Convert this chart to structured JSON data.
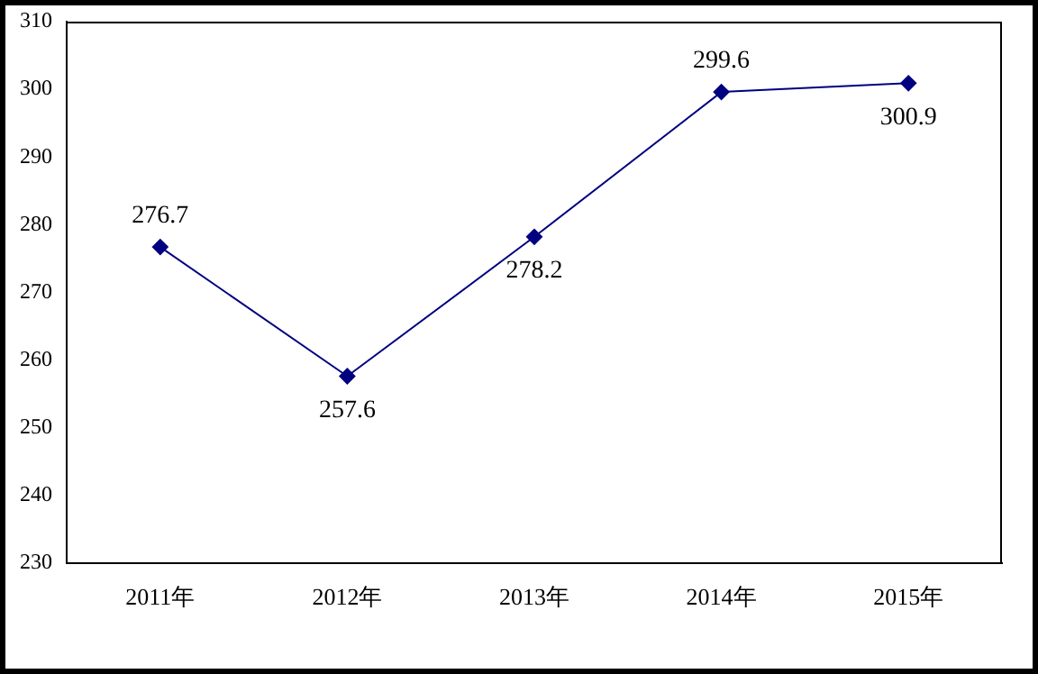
{
  "chart_data": {
    "type": "line",
    "categories": [
      "2011年",
      "2012年",
      "2013年",
      "2014年",
      "2015年"
    ],
    "series": [
      {
        "color": "#000080",
        "values": [
          276.7,
          257.6,
          278.2,
          299.6,
          300.9
        ]
      }
    ],
    "ylim": [
      230,
      310
    ],
    "yticks": [
      230,
      240,
      250,
      260,
      270,
      280,
      290,
      300,
      310
    ],
    "grid": false,
    "legend": false,
    "marker": "diamond",
    "line_style": "solid",
    "data_labels": true
  }
}
